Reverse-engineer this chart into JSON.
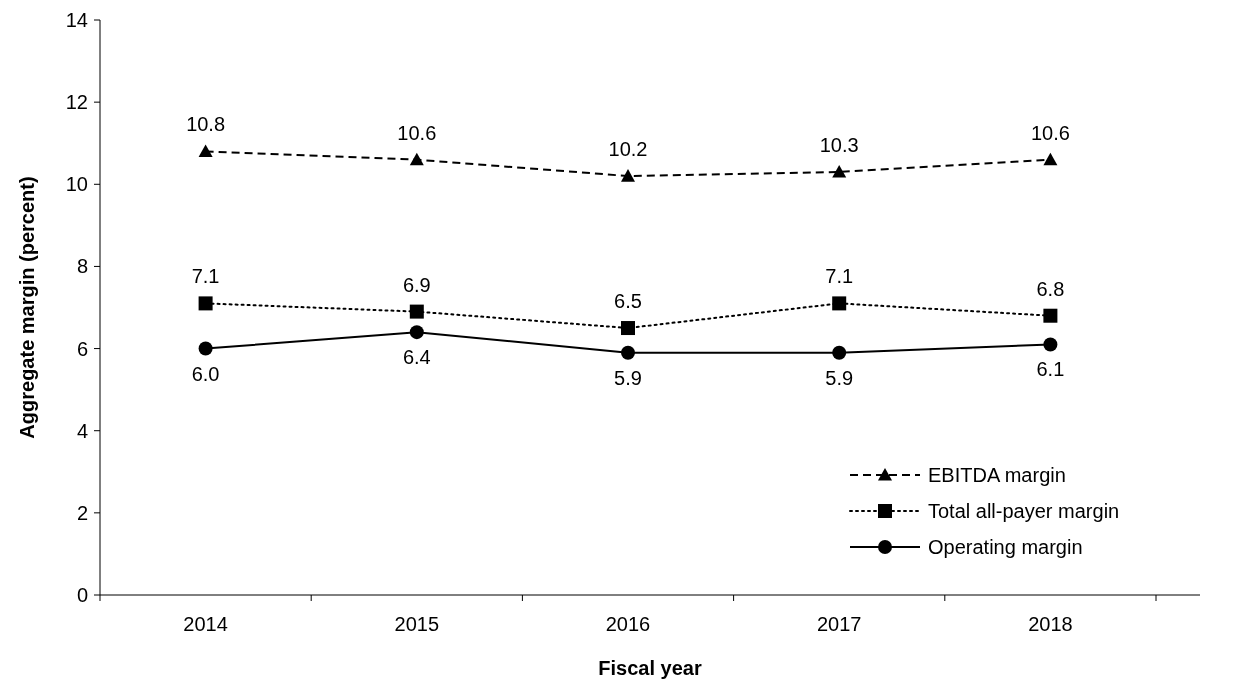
{
  "chart_data": {
    "type": "line",
    "xlabel": "Fiscal year",
    "ylabel": "Aggregate margin (percent)",
    "categories": [
      "2014",
      "2015",
      "2016",
      "2017",
      "2018"
    ],
    "series": [
      {
        "name": "EBITDA margin",
        "color": "#000000",
        "values": [
          10.8,
          10.6,
          10.2,
          10.3,
          10.6
        ],
        "value_labels": [
          "10.8",
          "10.6",
          "10.2",
          "10.3",
          "10.6"
        ],
        "marker": "triangle",
        "line_style": "dashed"
      },
      {
        "name": "Total all-payer margin",
        "color": "#000000",
        "values": [
          7.1,
          6.9,
          6.5,
          7.1,
          6.8
        ],
        "value_labels": [
          "7.1",
          "6.9",
          "6.5",
          "7.1",
          "6.8"
        ],
        "marker": "square",
        "line_style": "dotted"
      },
      {
        "name": "Operating margin",
        "color": "#000000",
        "values": [
          6.0,
          6.4,
          5.9,
          5.9,
          6.1
        ],
        "value_labels": [
          "6.0",
          "6.4",
          "5.9",
          "5.9",
          "6.1"
        ],
        "marker": "circle",
        "line_style": "solid"
      }
    ],
    "ylim": [
      0,
      14
    ],
    "yticks": [
      0,
      2,
      4,
      6,
      8,
      10,
      12,
      14
    ],
    "legend": "bottom right",
    "grid": false
  }
}
